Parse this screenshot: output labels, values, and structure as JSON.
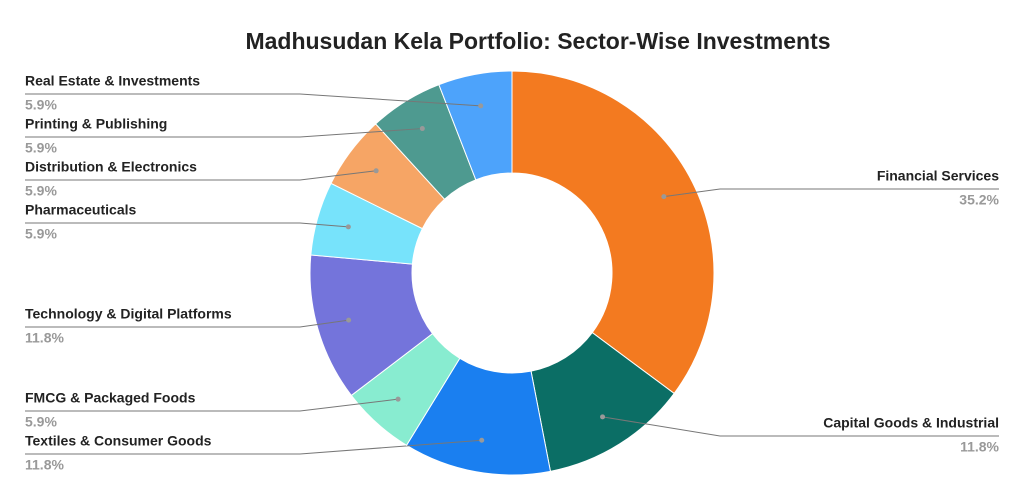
{
  "chart_data": {
    "type": "donut",
    "title": "Madhusudan Kela Portfolio: Sector-Wise Investments",
    "categories": [
      "Financial Services",
      "Capital Goods & Industrial",
      "Textiles & Consumer Goods",
      "FMCG & Packaged Foods",
      "Technology & Digital Platforms",
      "Pharmaceuticals",
      "Distribution & Electronics",
      "Printing & Publishing",
      "Real Estate & Investments"
    ],
    "values": [
      35.2,
      11.8,
      11.8,
      5.9,
      11.8,
      5.9,
      5.9,
      5.9,
      5.9
    ],
    "value_labels": [
      "35.2%",
      "11.8%",
      "11.8%",
      "5.9%",
      "11.8%",
      "5.9%",
      "5.9%",
      "5.9%",
      "5.9%"
    ],
    "colors": [
      "#f37a20",
      "#0b6e65",
      "#1a7ff0",
      "#88ecd0",
      "#7474db",
      "#77e3fb",
      "#f6a565",
      "#4e9a90",
      "#4da3fb"
    ]
  }
}
